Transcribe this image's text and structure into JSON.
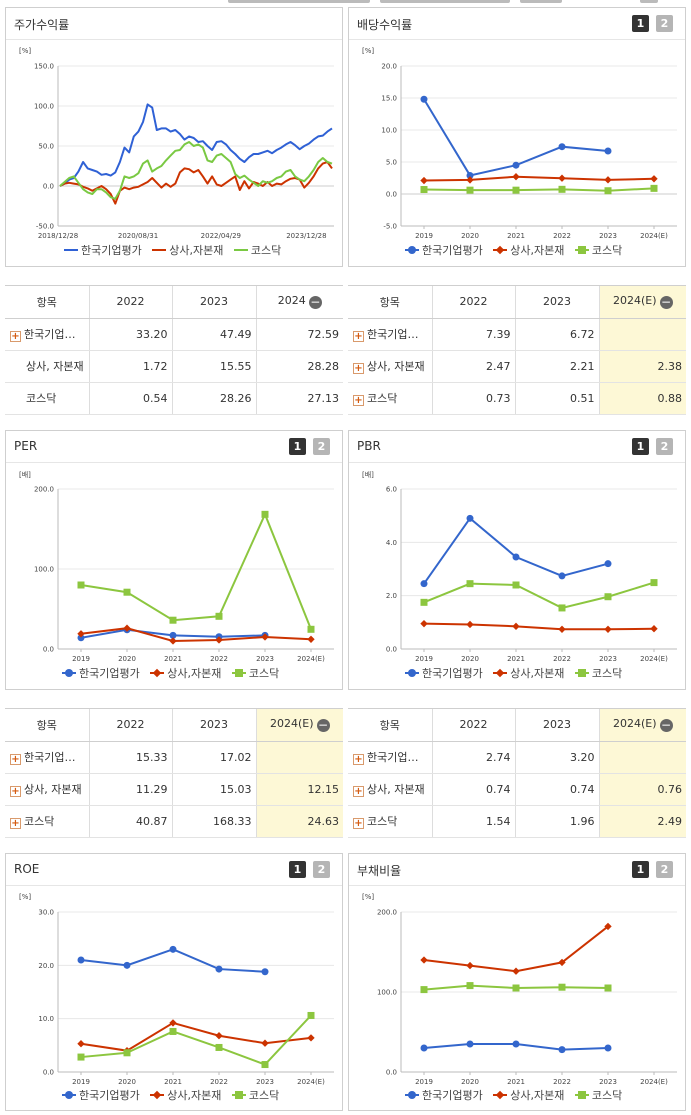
{
  "legend_names": [
    "한국기업평가",
    "상사,자본재",
    "코스닥"
  ],
  "colors": {
    "blue": "#3366cc",
    "red": "#cc3300",
    "green": "#8cc63f",
    "dblue": "#2f61d5",
    "dgreen": "#7ac943"
  },
  "panels": {
    "stock": {
      "title": "주가수익률",
      "unit": "[%]"
    },
    "div": {
      "title": "배당수익률",
      "unit": "[%]",
      "btn1": "1",
      "btn2": "2"
    },
    "per": {
      "title": "PER",
      "unit": "[배]",
      "btn1": "1",
      "btn2": "2"
    },
    "pbr": {
      "title": "PBR",
      "unit": "[배]",
      "btn1": "1",
      "btn2": "2"
    },
    "roe": {
      "title": "ROE",
      "unit": "[%]",
      "btn1": "1",
      "btn2": "2"
    },
    "debt": {
      "title": "부채비율",
      "unit": "[%]",
      "btn1": "1",
      "btn2": "2"
    }
  },
  "tables": {
    "stock": {
      "headers": [
        "항목",
        "2022",
        "2023",
        "2024"
      ],
      "rows": [
        {
          "name": "한국기업…",
          "plus": true,
          "v": [
            "33.20",
            "47.49",
            "72.59"
          ]
        },
        {
          "name": "상사, 자본재",
          "plus": false,
          "v": [
            "1.72",
            "15.55",
            "28.28"
          ]
        },
        {
          "name": "코스닥",
          "plus": false,
          "v": [
            "0.54",
            "28.26",
            "27.13"
          ]
        }
      ]
    },
    "div": {
      "headers": [
        "항목",
        "2022",
        "2023",
        "2024(E)"
      ],
      "rows": [
        {
          "name": "한국기업…",
          "plus": true,
          "v": [
            "7.39",
            "6.72",
            ""
          ]
        },
        {
          "name": "상사, 자본재",
          "plus": true,
          "v": [
            "2.47",
            "2.21",
            "2.38"
          ]
        },
        {
          "name": "코스닥",
          "plus": true,
          "v": [
            "0.73",
            "0.51",
            "0.88"
          ]
        }
      ]
    },
    "per": {
      "headers": [
        "항목",
        "2022",
        "2023",
        "2024(E)"
      ],
      "rows": [
        {
          "name": "한국기업…",
          "plus": true,
          "v": [
            "15.33",
            "17.02",
            ""
          ]
        },
        {
          "name": "상사, 자본재",
          "plus": true,
          "v": [
            "11.29",
            "15.03",
            "12.15"
          ]
        },
        {
          "name": "코스닥",
          "plus": true,
          "v": [
            "40.87",
            "168.33",
            "24.63"
          ]
        }
      ]
    },
    "pbr": {
      "headers": [
        "항목",
        "2022",
        "2023",
        "2024(E)"
      ],
      "rows": [
        {
          "name": "한국기업…",
          "plus": true,
          "v": [
            "2.74",
            "3.20",
            ""
          ]
        },
        {
          "name": "상사, 자본재",
          "plus": true,
          "v": [
            "0.74",
            "0.74",
            "0.76"
          ]
        },
        {
          "name": "코스닥",
          "plus": true,
          "v": [
            "1.54",
            "1.96",
            "2.49"
          ]
        }
      ]
    }
  },
  "chart_data": [
    {
      "id": "stock",
      "type": "line",
      "title": "주가수익률",
      "ylabel": "[%]",
      "ylim": [
        -50,
        150
      ],
      "yticks": [
        "150.0",
        "100.0",
        "50.0",
        "0.0",
        "-50.0"
      ],
      "xticks": [
        "2018/12/28",
        "2020/08/31",
        "2022/04/29",
        "2023/12/28"
      ],
      "series": [
        {
          "name": "한국기업평가",
          "color": "#2f61d5",
          "values": [
            0,
            3,
            8,
            10,
            18,
            30,
            22,
            20,
            18,
            14,
            15,
            13,
            17,
            30,
            48,
            42,
            62,
            68,
            80,
            102,
            98,
            70,
            72,
            72,
            68,
            70,
            65,
            58,
            62,
            60,
            55,
            56,
            50,
            45,
            55,
            56,
            52,
            45,
            40,
            34,
            30,
            36,
            40,
            40,
            42,
            44,
            41,
            45,
            48,
            52,
            55,
            51,
            46,
            50,
            53,
            58,
            62,
            63,
            68,
            72
          ]
        },
        {
          "name": "상사,자본재",
          "color": "#cc3300",
          "values": [
            0,
            3,
            4,
            3,
            2,
            -1,
            -3,
            -6,
            -3,
            0,
            -4,
            -10,
            -22,
            -6,
            -2,
            -4,
            -2,
            -1,
            2,
            5,
            10,
            4,
            -2,
            3,
            -1,
            3,
            17,
            22,
            21,
            17,
            20,
            12,
            3,
            12,
            2,
            0,
            4,
            8,
            12,
            -5,
            6,
            -3,
            5,
            3,
            0,
            5,
            0,
            3,
            2,
            6,
            9,
            10,
            8,
            -2,
            4,
            12,
            22,
            28,
            30,
            22
          ]
        },
        {
          "name": "코스닥",
          "color": "#7ac943",
          "values": [
            0,
            5,
            10,
            12,
            4,
            -4,
            -8,
            -10,
            -4,
            -4,
            -8,
            -14,
            -16,
            -6,
            12,
            10,
            12,
            16,
            28,
            32,
            18,
            22,
            25,
            32,
            38,
            44,
            45,
            52,
            55,
            50,
            52,
            48,
            32,
            30,
            38,
            40,
            35,
            30,
            15,
            10,
            13,
            8,
            4,
            0,
            6,
            4,
            6,
            10,
            12,
            18,
            20,
            12,
            8,
            6,
            12,
            20,
            30,
            35,
            30,
            28
          ]
        }
      ]
    },
    {
      "id": "div",
      "type": "line",
      "title": "배당수익률",
      "ylabel": "[%]",
      "ylim": [
        -5,
        20
      ],
      "yticks": [
        "20.0",
        "15.0",
        "10.0",
        "5.0",
        "0.0",
        "-5.0"
      ],
      "categories": [
        "2019",
        "2020",
        "2021",
        "2022",
        "2023",
        "2024(E)"
      ],
      "series": [
        {
          "name": "한국기업평가",
          "color": "#3366cc",
          "marker": "circle",
          "values": [
            14.8,
            2.9,
            4.5,
            7.39,
            6.72,
            null
          ]
        },
        {
          "name": "상사,자본재",
          "color": "#cc3300",
          "marker": "diamond",
          "values": [
            2.1,
            2.2,
            2.7,
            2.47,
            2.21,
            2.38
          ]
        },
        {
          "name": "코스닥",
          "color": "#8cc63f",
          "marker": "square",
          "values": [
            0.7,
            0.6,
            0.6,
            0.73,
            0.51,
            0.88
          ]
        }
      ]
    },
    {
      "id": "per",
      "type": "line",
      "title": "PER",
      "ylabel": "[배]",
      "ylim": [
        0,
        200
      ],
      "yticks": [
        "200.0",
        "100.0",
        "0.0"
      ],
      "categories": [
        "2019",
        "2020",
        "2021",
        "2022",
        "2023",
        "2024(E)"
      ],
      "series": [
        {
          "name": "한국기업평가",
          "color": "#3366cc",
          "marker": "circle",
          "values": [
            14,
            24,
            17,
            15.33,
            17.02,
            null
          ]
        },
        {
          "name": "상사,자본재",
          "color": "#cc3300",
          "marker": "diamond",
          "values": [
            19,
            26,
            10,
            11.29,
            15.03,
            12.15
          ]
        },
        {
          "name": "코스닥",
          "color": "#8cc63f",
          "marker": "square",
          "values": [
            80,
            71,
            36,
            40.87,
            168.33,
            24.63
          ]
        }
      ]
    },
    {
      "id": "pbr",
      "type": "line",
      "title": "PBR",
      "ylabel": "[배]",
      "ylim": [
        0,
        6
      ],
      "yticks": [
        "6.0",
        "4.0",
        "2.0",
        "0.0"
      ],
      "categories": [
        "2019",
        "2020",
        "2021",
        "2022",
        "2023",
        "2024(E)"
      ],
      "series": [
        {
          "name": "한국기업평가",
          "color": "#3366cc",
          "marker": "circle",
          "values": [
            2.45,
            4.9,
            3.45,
            2.74,
            3.2,
            null
          ]
        },
        {
          "name": "상사,자본재",
          "color": "#cc3300",
          "marker": "diamond",
          "values": [
            0.95,
            0.92,
            0.85,
            0.74,
            0.74,
            0.76
          ]
        },
        {
          "name": "코스닥",
          "color": "#8cc63f",
          "marker": "square",
          "values": [
            1.75,
            2.45,
            2.4,
            1.54,
            1.96,
            2.49
          ]
        }
      ]
    },
    {
      "id": "roe",
      "type": "line",
      "title": "ROE",
      "ylabel": "[%]",
      "ylim": [
        0,
        30
      ],
      "yticks": [
        "30.0",
        "20.0",
        "10.0",
        "0.0"
      ],
      "categories": [
        "2019",
        "2020",
        "2021",
        "2022",
        "2023",
        "2024(E)"
      ],
      "series": [
        {
          "name": "한국기업평가",
          "color": "#3366cc",
          "marker": "circle",
          "values": [
            21,
            20,
            23,
            19.3,
            18.8,
            null
          ]
        },
        {
          "name": "상사,자본재",
          "color": "#cc3300",
          "marker": "diamond",
          "values": [
            5.3,
            4,
            9.2,
            6.8,
            5.4,
            6.4
          ]
        },
        {
          "name": "코스닥",
          "color": "#8cc63f",
          "marker": "square",
          "values": [
            2.8,
            3.6,
            7.6,
            4.6,
            1.4,
            10.6
          ]
        }
      ]
    },
    {
      "id": "debt",
      "type": "line",
      "title": "부채비율",
      "ylabel": "[%]",
      "ylim": [
        0,
        200
      ],
      "yticks": [
        "200.0",
        "100.0",
        "0.0"
      ],
      "categories": [
        "2019",
        "2020",
        "2021",
        "2022",
        "2023",
        "2024(E)"
      ],
      "series": [
        {
          "name": "한국기업평가",
          "color": "#3366cc",
          "marker": "circle",
          "values": [
            30,
            35,
            35,
            28,
            30,
            null
          ]
        },
        {
          "name": "상사,자본재",
          "color": "#cc3300",
          "marker": "diamond",
          "values": [
            140,
            133,
            126,
            137,
            182,
            null
          ]
        },
        {
          "name": "코스닥",
          "color": "#8cc63f",
          "marker": "square",
          "values": [
            103,
            108,
            105,
            106,
            105,
            null
          ]
        }
      ]
    }
  ]
}
